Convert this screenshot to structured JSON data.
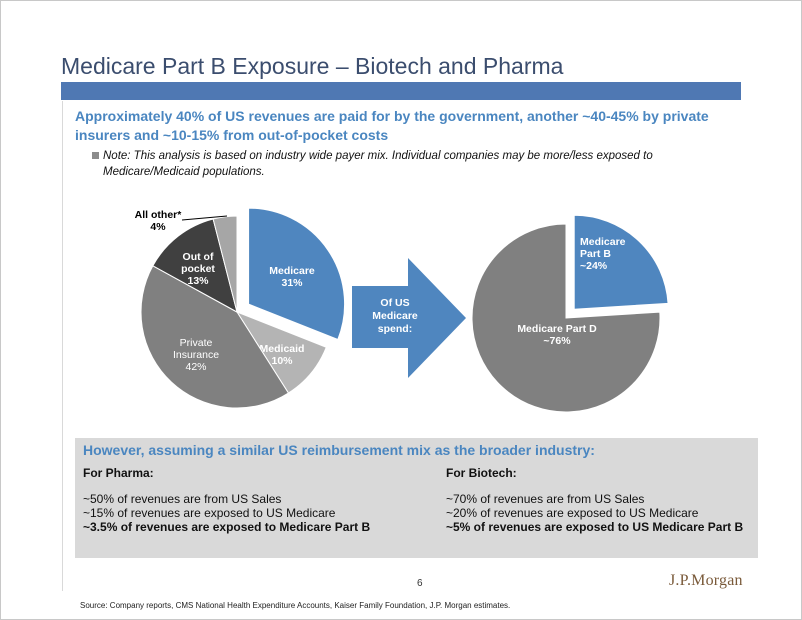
{
  "title": "Medicare Part B Exposure – Biotech and Pharma",
  "headline": "Approximately 40% of US revenues are paid for by the government, another ~40-45% by private insurers and ~10-15% from out-of-pocket costs",
  "note": "Note: This analysis is based on industry wide payer mix. Individual companies may be more/less exposed to Medicare/Medicaid populations.",
  "arrow_label": [
    "Of US",
    "Medicare",
    "spend:"
  ],
  "chart_data": [
    {
      "type": "pie",
      "slices": [
        {
          "label": [
            "Medicare",
            "31%"
          ],
          "value": 31,
          "color": "#4f86bf",
          "exploded": true,
          "text_color": "#ffffff"
        },
        {
          "label": [
            "Medicaid",
            "10%"
          ],
          "value": 10,
          "color": "#b4b4b4",
          "exploded": false,
          "text_color": "#ffffff"
        },
        {
          "label": [
            "Private",
            "Insurance",
            "42%"
          ],
          "value": 42,
          "color": "#808080",
          "exploded": false,
          "text_color": "#ffffff"
        },
        {
          "label": [
            "Out of",
            "pocket",
            "13%"
          ],
          "value": 13,
          "color": "#404040",
          "exploded": false,
          "text_color": "#ffffff"
        },
        {
          "label": [
            "All other*",
            "4%"
          ],
          "value": 4,
          "color": "#a6a6a6",
          "exploded": false,
          "text_color": "#000000"
        }
      ]
    },
    {
      "type": "pie",
      "slices": [
        {
          "label": [
            "Medicare",
            "Part B",
            "~24%"
          ],
          "value": 24,
          "color": "#4f86bf",
          "exploded": true,
          "text_color": "#ffffff"
        },
        {
          "label": [
            "Medicare Part D",
            "~76%"
          ],
          "value": 76,
          "color": "#808080",
          "exploded": false,
          "text_color": "#ffffff"
        }
      ]
    }
  ],
  "bottom": {
    "heading": "However, assuming a similar US reimbursement mix as the broader industry:",
    "pharma": {
      "title": "For Pharma:",
      "line1": "~50% of revenues are from US Sales",
      "line2": "~15% of revenues are exposed to US Medicare",
      "line3": "~3.5% of revenues are exposed to Medicare Part B"
    },
    "biotech": {
      "title": "For Biotech:",
      "line1": "~70% of revenues are from US Sales",
      "line2": "~20% of revenues are exposed to US Medicare",
      "line3": "~5% of revenues are exposed to US Medicare Part B"
    }
  },
  "page_number": "6",
  "logo": "J.P.Morgan",
  "source": "Source: Company reports, CMS National Health Expenditure Accounts, Kaiser Family Foundation, J.P. Morgan estimates."
}
